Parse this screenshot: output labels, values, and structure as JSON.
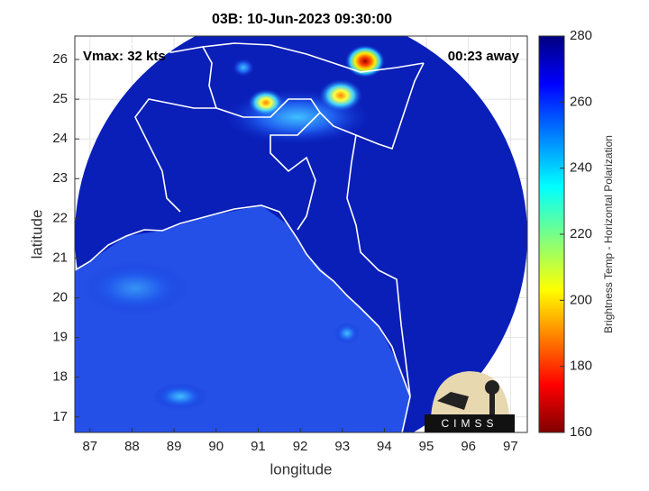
{
  "chart_data": {
    "type": "heatmap",
    "title": "03B: 10-Jun-2023 09:30:00",
    "annotations": [
      "Vmax: 32 kts",
      "00:23 away"
    ],
    "xlabel": "longitude",
    "ylabel": "latitude",
    "xlim": [
      86.64,
      97.4
    ],
    "ylim": [
      16.61,
      26.59
    ],
    "xticks": [
      87,
      88,
      89,
      90,
      91,
      92,
      93,
      94,
      95,
      96,
      97
    ],
    "yticks": [
      17,
      18,
      19,
      20,
      21,
      22,
      23,
      24,
      25,
      26
    ],
    "grid": true,
    "colorbar": {
      "label": "Brightness Temp - Horizontal Polarization",
      "lim": [
        160,
        280
      ],
      "ticks": [
        160,
        180,
        200,
        220,
        240,
        260,
        280
      ]
    },
    "logo": "CIMSS"
  }
}
